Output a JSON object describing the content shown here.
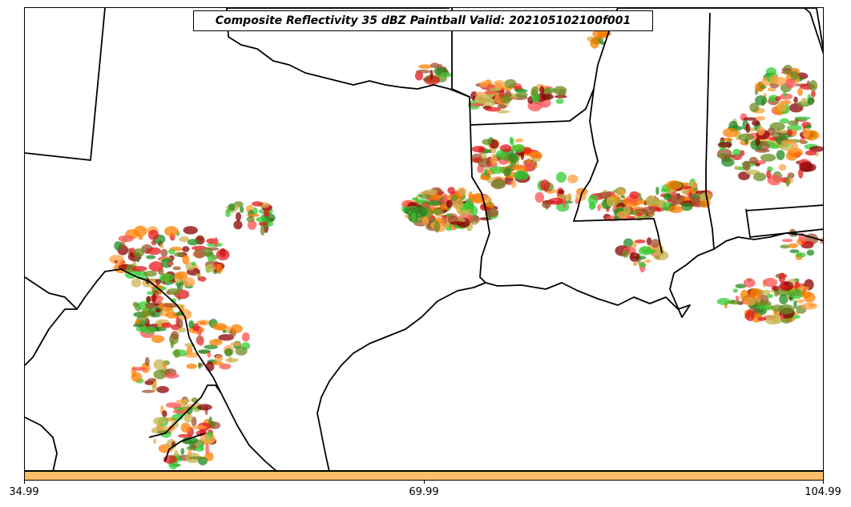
{
  "title": "Composite Reflectivity 35 dBZ Paintball Valid: 202105102100f001",
  "colorbar": {
    "color": "#ffbf66",
    "ticks": [
      "34.99",
      "69.99",
      "104.99"
    ]
  },
  "paintball_colors": [
    "#ff7f00",
    "#e31a1c",
    "#33cc33",
    "#6b8e23",
    "#a0522d",
    "#ffa040",
    "#8b0000",
    "#c8b450",
    "#ff5050",
    "#228b22"
  ]
}
